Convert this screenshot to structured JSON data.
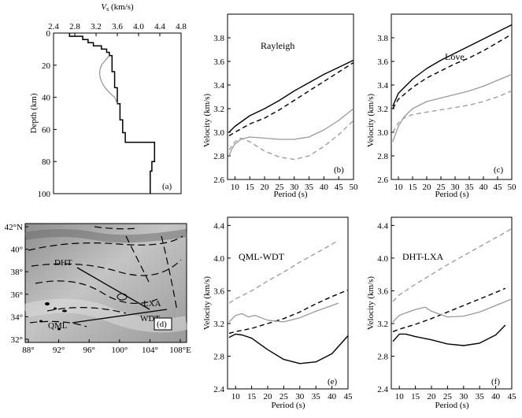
{
  "chart_data": [
    {
      "panel": "(a)",
      "type": "line",
      "title": "",
      "xlabel_italic": "V",
      "xlabel_sub": "s",
      "xlabel_rest": " (km/s)",
      "ylabel": "Depth (km)",
      "xlim": [
        2.4,
        4.8
      ],
      "ylim": [
        0,
        100
      ],
      "x_ticks": [
        "2.4",
        "2.8",
        "3.2",
        "3.6",
        "4.0",
        "4.4",
        "4.8"
      ],
      "y_ticks": [
        "0",
        "20",
        "40",
        "60",
        "80",
        "100"
      ],
      "series": [
        {
          "style": "solid-black-step",
          "points": [
            [
              2.7,
              0
            ],
            [
              2.7,
              2
            ],
            [
              2.95,
              2
            ],
            [
              2.95,
              4
            ],
            [
              3.05,
              4
            ],
            [
              3.05,
              6
            ],
            [
              3.15,
              6
            ],
            [
              3.15,
              8
            ],
            [
              3.3,
              8
            ],
            [
              3.3,
              10
            ],
            [
              3.4,
              10
            ],
            [
              3.4,
              12
            ],
            [
              3.45,
              12
            ],
            [
              3.45,
              14
            ],
            [
              3.5,
              14
            ],
            [
              3.5,
              24
            ],
            [
              3.55,
              24
            ],
            [
              3.55,
              34
            ],
            [
              3.6,
              34
            ],
            [
              3.6,
              44
            ],
            [
              3.65,
              44
            ],
            [
              3.65,
              54
            ],
            [
              3.7,
              54
            ],
            [
              3.7,
              62
            ],
            [
              3.75,
              62
            ],
            [
              3.75,
              68
            ],
            [
              4.3,
              68
            ],
            [
              4.3,
              80
            ],
            [
              4.25,
              80
            ],
            [
              4.25,
              86
            ],
            [
              4.22,
              86
            ],
            [
              4.22,
              100
            ]
          ]
        },
        {
          "style": "grey-step",
          "points": [
            [
              3.45,
              14
            ],
            [
              3.4,
              16
            ],
            [
              3.35,
              18
            ],
            [
              3.3,
              20
            ],
            [
              3.28,
              22
            ],
            [
              3.27,
              24
            ],
            [
              3.27,
              26
            ],
            [
              3.28,
              28
            ],
            [
              3.3,
              30
            ],
            [
              3.33,
              32
            ],
            [
              3.37,
              34
            ],
            [
              3.42,
              36
            ],
            [
              3.48,
              38
            ],
            [
              3.55,
              40
            ],
            [
              3.6,
              44
            ]
          ]
        }
      ]
    },
    {
      "panel": "(b)",
      "type": "line",
      "title": "Rayleigh",
      "xlabel": "Period (s)",
      "ylabel": "Velocity (km/s)",
      "xlim": [
        7.5,
        50
      ],
      "ylim": [
        2.6,
        4.0
      ],
      "x_ticks": [
        "10",
        "15",
        "20",
        "25",
        "30",
        "35",
        "40",
        "45",
        "50"
      ],
      "y_ticks": [
        "2.6",
        "2.8",
        "3.0",
        "3.2",
        "3.4",
        "3.6",
        "3.8"
      ],
      "series": [
        {
          "style": "solid-black",
          "x": [
            8,
            10,
            15,
            20,
            25,
            30,
            35,
            40,
            45,
            50
          ],
          "y": [
            3.0,
            3.05,
            3.14,
            3.2,
            3.27,
            3.35,
            3.42,
            3.49,
            3.55,
            3.61
          ]
        },
        {
          "style": "dashed-black",
          "x": [
            8,
            10,
            15,
            20,
            25,
            30,
            35,
            40,
            45,
            50
          ],
          "y": [
            2.97,
            3.0,
            3.07,
            3.12,
            3.19,
            3.27,
            3.35,
            3.43,
            3.51,
            3.59
          ]
        },
        {
          "style": "solid-grey",
          "x": [
            8,
            9,
            10,
            12,
            15,
            20,
            25,
            30,
            35,
            40,
            45,
            50
          ],
          "y": [
            2.8,
            2.86,
            2.9,
            2.94,
            2.96,
            2.95,
            2.94,
            2.94,
            2.96,
            3.02,
            3.1,
            3.2
          ]
        },
        {
          "style": "dashed-grey",
          "x": [
            8,
            10,
            12,
            15,
            20,
            25,
            30,
            35,
            40,
            45,
            50
          ],
          "y": [
            2.85,
            2.92,
            2.95,
            2.92,
            2.84,
            2.79,
            2.77,
            2.8,
            2.88,
            2.98,
            3.1
          ]
        }
      ]
    },
    {
      "panel": "(c)",
      "type": "line",
      "title": "Love",
      "xlabel": "Period (s)",
      "ylabel": "Velocity (km/s)",
      "xlim": [
        7.5,
        50
      ],
      "ylim": [
        2.6,
        4.0
      ],
      "x_ticks": [
        "10",
        "15",
        "20",
        "25",
        "30",
        "35",
        "40",
        "45",
        "50"
      ],
      "y_ticks": [
        "2.6",
        "2.8",
        "3.0",
        "3.2",
        "3.4",
        "3.6",
        "3.8"
      ],
      "series": [
        {
          "style": "solid-black",
          "x": [
            8,
            10,
            15,
            20,
            25,
            30,
            35,
            40,
            45,
            50
          ],
          "y": [
            3.22,
            3.33,
            3.45,
            3.54,
            3.61,
            3.67,
            3.73,
            3.79,
            3.85,
            3.91
          ]
        },
        {
          "style": "dashed-black",
          "x": [
            8,
            10,
            15,
            20,
            25,
            30,
            35,
            40,
            45,
            50
          ],
          "y": [
            3.2,
            3.28,
            3.38,
            3.46,
            3.52,
            3.58,
            3.63,
            3.69,
            3.76,
            3.83
          ]
        },
        {
          "style": "solid-grey",
          "x": [
            8,
            10,
            12,
            15,
            20,
            25,
            30,
            35,
            40,
            45,
            50
          ],
          "y": [
            2.92,
            3.05,
            3.13,
            3.2,
            3.26,
            3.29,
            3.32,
            3.35,
            3.39,
            3.44,
            3.49
          ]
        },
        {
          "style": "dashed-grey",
          "x": [
            8,
            10,
            12,
            15,
            20,
            25,
            30,
            35,
            40,
            45,
            50
          ],
          "y": [
            3.0,
            3.08,
            3.12,
            3.15,
            3.17,
            3.19,
            3.21,
            3.23,
            3.26,
            3.3,
            3.35
          ]
        }
      ]
    },
    {
      "panel": "(e)",
      "type": "line",
      "title": "QML-WDT",
      "xlabel": "Period (s)",
      "ylabel": "Velocity (km/s)",
      "xlim": [
        7.5,
        45
      ],
      "ylim": [
        2.4,
        4.5
      ],
      "x_ticks": [
        "10",
        "15",
        "20",
        "25",
        "30",
        "35",
        "40",
        "45"
      ],
      "y_ticks": [
        "2.4",
        "2.8",
        "3.2",
        "3.6",
        "4.0",
        "4.4"
      ],
      "series": [
        {
          "style": "solid-black",
          "x": [
            8,
            10,
            12,
            15,
            20,
            25,
            30,
            35,
            40,
            45
          ],
          "y": [
            3.03,
            3.07,
            3.06,
            3.02,
            2.88,
            2.76,
            2.71,
            2.73,
            2.83,
            3.05
          ]
        },
        {
          "style": "dashed-black",
          "x": [
            8,
            10,
            15,
            20,
            25,
            30,
            35,
            40,
            45
          ],
          "y": [
            3.08,
            3.1,
            3.14,
            3.2,
            3.26,
            3.34,
            3.44,
            3.53,
            3.61
          ]
        },
        {
          "style": "solid-grey",
          "x": [
            8,
            10,
            12,
            14,
            16,
            18,
            20,
            25,
            30,
            35,
            40,
            42
          ],
          "y": [
            3.22,
            3.3,
            3.32,
            3.28,
            3.3,
            3.27,
            3.24,
            3.22,
            3.27,
            3.35,
            3.42,
            3.45
          ]
        },
        {
          "style": "dashed-grey",
          "x": [
            8,
            10,
            15,
            20,
            25,
            30,
            35,
            40,
            42
          ],
          "y": [
            3.45,
            3.5,
            3.6,
            3.72,
            3.83,
            3.95,
            4.06,
            4.17,
            4.22
          ]
        }
      ]
    },
    {
      "panel": "(f)",
      "type": "line",
      "title": "DHT-LXA",
      "xlabel": "Period (s)",
      "ylabel": "Velocity (km/s)",
      "xlim": [
        7.5,
        45
      ],
      "ylim": [
        2.4,
        4.5
      ],
      "x_ticks": [
        "10",
        "15",
        "20",
        "25",
        "30",
        "35",
        "40",
        "45"
      ],
      "y_ticks": [
        "2.4",
        "2.8",
        "3.2",
        "3.6",
        "4.0",
        "4.4"
      ],
      "series": [
        {
          "style": "solid-black",
          "x": [
            8,
            10,
            12,
            15,
            20,
            25,
            30,
            35,
            40,
            43
          ],
          "y": [
            2.98,
            3.07,
            3.07,
            3.04,
            3.0,
            2.95,
            2.93,
            2.96,
            3.06,
            3.18
          ]
        },
        {
          "style": "dashed-black",
          "x": [
            8,
            10,
            15,
            20,
            25,
            30,
            35,
            40,
            43
          ],
          "y": [
            3.1,
            3.13,
            3.19,
            3.26,
            3.34,
            3.42,
            3.5,
            3.58,
            3.63
          ]
        },
        {
          "style": "solid-grey",
          "x": [
            8,
            10,
            12,
            15,
            18,
            20,
            25,
            30,
            35,
            40,
            45
          ],
          "y": [
            3.22,
            3.3,
            3.33,
            3.37,
            3.4,
            3.35,
            3.28,
            3.29,
            3.34,
            3.42,
            3.5
          ]
        },
        {
          "style": "dashed-grey",
          "x": [
            8,
            10,
            15,
            20,
            25,
            30,
            35,
            40,
            45
          ],
          "y": [
            3.47,
            3.55,
            3.68,
            3.8,
            3.92,
            4.03,
            4.14,
            4.25,
            4.36
          ]
        }
      ]
    }
  ],
  "map": {
    "panel_label": "(d)",
    "lat_ticks": [
      "42°N",
      "40°",
      "38°",
      "36°",
      "34°",
      "32°"
    ],
    "lon_ticks": [
      "88°",
      "92°",
      "96°",
      "100°",
      "104°",
      "108°E"
    ],
    "stations": [
      "DHT",
      "LXA",
      "WDT",
      "QML"
    ]
  }
}
